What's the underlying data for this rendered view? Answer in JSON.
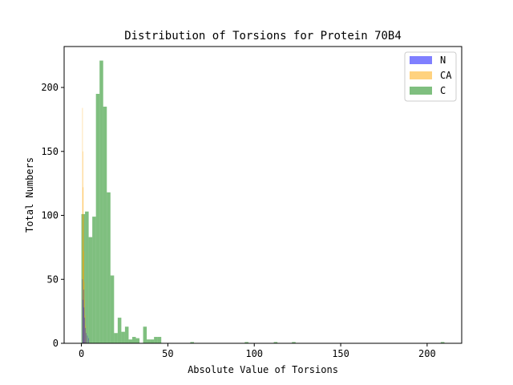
{
  "chart_data": {
    "type": "histogram",
    "title": "Distribution of Torsions for Protein 70B4",
    "xlabel": "Absolute Value of Torsions",
    "ylabel": "Total Numbers",
    "xlim": [
      -10,
      220
    ],
    "ylim": [
      0,
      232
    ],
    "xticks": [
      0,
      50,
      100,
      150,
      200
    ],
    "yticks": [
      0,
      50,
      100,
      150,
      200
    ],
    "grid": false,
    "legend_position": "top-right",
    "series": [
      {
        "name": "N",
        "color": "#0000ff",
        "opacity": 0.5,
        "bin_width": 0.1,
        "bins": [
          {
            "x": 0.5,
            "h": 50
          },
          {
            "x": 0.8,
            "h": 34
          },
          {
            "x": 1.1,
            "h": 42
          },
          {
            "x": 1.4,
            "h": 28
          },
          {
            "x": 1.8,
            "h": 20
          },
          {
            "x": 2.2,
            "h": 12
          },
          {
            "x": 2.7,
            "h": 8
          },
          {
            "x": 3.3,
            "h": 6
          },
          {
            "x": 4.0,
            "h": 4
          }
        ]
      },
      {
        "name": "CA",
        "color": "#ffa500",
        "opacity": 0.5,
        "bin_width": 0.1,
        "bins": [
          {
            "x": 0.5,
            "h": 184
          },
          {
            "x": 0.7,
            "h": 150
          },
          {
            "x": 0.9,
            "h": 122
          },
          {
            "x": 1.1,
            "h": 100
          },
          {
            "x": 1.3,
            "h": 72
          },
          {
            "x": 1.5,
            "h": 48
          },
          {
            "x": 1.7,
            "h": 34
          },
          {
            "x": 2.0,
            "h": 22
          },
          {
            "x": 2.3,
            "h": 14
          },
          {
            "x": 2.7,
            "h": 8
          },
          {
            "x": 3.2,
            "h": 5
          },
          {
            "x": 4.0,
            "h": 3
          }
        ]
      },
      {
        "name": "C",
        "color": "#008000",
        "opacity": 0.5,
        "bin_width": 2.1,
        "bins": [
          {
            "x": 0.0,
            "h": 101
          },
          {
            "x": 2.1,
            "h": 103
          },
          {
            "x": 4.2,
            "h": 83
          },
          {
            "x": 6.3,
            "h": 99
          },
          {
            "x": 8.4,
            "h": 195
          },
          {
            "x": 10.5,
            "h": 221
          },
          {
            "x": 12.6,
            "h": 185
          },
          {
            "x": 14.7,
            "h": 118
          },
          {
            "x": 16.8,
            "h": 53
          },
          {
            "x": 18.9,
            "h": 8
          },
          {
            "x": 21.0,
            "h": 20
          },
          {
            "x": 23.1,
            "h": 9
          },
          {
            "x": 25.2,
            "h": 13
          },
          {
            "x": 27.3,
            "h": 3
          },
          {
            "x": 29.4,
            "h": 5
          },
          {
            "x": 31.5,
            "h": 4
          },
          {
            "x": 35.7,
            "h": 13
          },
          {
            "x": 37.8,
            "h": 3
          },
          {
            "x": 39.9,
            "h": 3
          },
          {
            "x": 42.0,
            "h": 5
          },
          {
            "x": 44.1,
            "h": 5
          },
          {
            "x": 63.0,
            "h": 1
          },
          {
            "x": 94.5,
            "h": 1
          },
          {
            "x": 111.3,
            "h": 1
          },
          {
            "x": 121.8,
            "h": 1
          },
          {
            "x": 207.9,
            "h": 1
          }
        ]
      }
    ]
  }
}
